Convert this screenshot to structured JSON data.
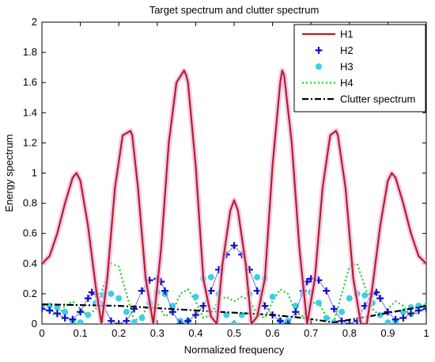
{
  "chart_data": {
    "type": "line",
    "title": "Target spectrum and clutter spectrum",
    "xlabel": "Normalized frequency",
    "ylabel": "Energy spectrum",
    "xlim": [
      0,
      1
    ],
    "ylim": [
      0,
      2
    ],
    "grid": false,
    "legend_position": "top-right",
    "x_ticks": [
      "0",
      "0.1",
      "0.2",
      "0.3",
      "0.4",
      "0.5",
      "0.6",
      "0.7",
      "0.8",
      "0.9",
      "1"
    ],
    "y_ticks": [
      "0",
      "0.2",
      "0.4",
      "0.6",
      "0.8",
      "1",
      "1.2",
      "1.4",
      "1.6",
      "1.8",
      "2"
    ],
    "series": [
      {
        "name": "H1",
        "color": "#b22222",
        "style": "solid",
        "x": [
          0,
          0.02,
          0.04,
          0.06,
          0.08,
          0.09,
          0.1,
          0.12,
          0.14,
          0.155,
          0.17,
          0.19,
          0.21,
          0.23,
          0.235,
          0.25,
          0.27,
          0.29,
          0.31,
          0.33,
          0.35,
          0.37,
          0.375,
          0.38,
          0.4,
          0.42,
          0.44,
          0.455,
          0.47,
          0.49,
          0.5,
          0.51,
          0.53,
          0.545,
          0.56,
          0.58,
          0.6,
          0.62,
          0.625,
          0.63,
          0.65,
          0.67,
          0.69,
          0.71,
          0.73,
          0.75,
          0.765,
          0.77,
          0.79,
          0.81,
          0.83,
          0.845,
          0.86,
          0.88,
          0.9,
          0.91,
          0.92,
          0.94,
          0.96,
          0.98,
          1.0
        ],
        "y": [
          0.4,
          0.45,
          0.6,
          0.8,
          0.97,
          1.0,
          0.95,
          0.65,
          0.25,
          0.0,
          0.3,
          0.9,
          1.25,
          1.28,
          1.25,
          0.9,
          0.3,
          0.0,
          0.5,
          1.2,
          1.6,
          1.68,
          1.65,
          1.6,
          1.05,
          0.3,
          0.05,
          0.0,
          0.4,
          0.75,
          0.82,
          0.75,
          0.4,
          0.0,
          0.05,
          0.3,
          1.05,
          1.6,
          1.68,
          1.65,
          1.2,
          0.5,
          0.0,
          0.3,
          0.9,
          1.25,
          1.28,
          1.25,
          0.9,
          0.3,
          0.0,
          0.0,
          0.25,
          0.65,
          0.95,
          1.0,
          0.97,
          0.8,
          0.6,
          0.45,
          0.4
        ]
      },
      {
        "name": "H2",
        "color": "#1010c0",
        "style": "plus",
        "x": [
          0,
          0.02,
          0.04,
          0.06,
          0.08,
          0.1,
          0.12,
          0.13,
          0.14,
          0.16,
          0.18,
          0.2,
          0.22,
          0.24,
          0.26,
          0.28,
          0.3,
          0.31,
          0.32,
          0.34,
          0.36,
          0.38,
          0.4,
          0.42,
          0.44,
          0.46,
          0.48,
          0.5,
          0.52,
          0.54,
          0.56,
          0.58,
          0.6,
          0.62,
          0.64,
          0.66,
          0.68,
          0.69,
          0.7,
          0.72,
          0.74,
          0.76,
          0.78,
          0.8,
          0.82,
          0.84,
          0.86,
          0.87,
          0.88,
          0.9,
          0.92,
          0.94,
          0.96,
          0.98,
          1.0
        ],
        "y": [
          0.1,
          0.09,
          0.07,
          0.04,
          0.03,
          0.08,
          0.17,
          0.21,
          0.2,
          0.12,
          0.02,
          0.0,
          0.02,
          0.1,
          0.22,
          0.29,
          0.3,
          0.28,
          0.22,
          0.08,
          0.0,
          0.02,
          0.06,
          0.12,
          0.22,
          0.36,
          0.46,
          0.52,
          0.46,
          0.36,
          0.22,
          0.12,
          0.06,
          0.02,
          0.0,
          0.08,
          0.22,
          0.28,
          0.3,
          0.29,
          0.22,
          0.1,
          0.02,
          0.0,
          0.02,
          0.12,
          0.2,
          0.21,
          0.17,
          0.08,
          0.03,
          0.04,
          0.07,
          0.09,
          0.1
        ]
      },
      {
        "name": "H3",
        "color": "#3ccfe6",
        "style": "dots",
        "x": [
          0,
          0.02,
          0.04,
          0.06,
          0.08,
          0.1,
          0.12,
          0.14,
          0.16,
          0.18,
          0.2,
          0.22,
          0.24,
          0.26,
          0.28,
          0.3,
          0.32,
          0.34,
          0.36,
          0.38,
          0.4,
          0.42,
          0.44,
          0.46,
          0.48,
          0.5,
          0.52,
          0.54,
          0.56,
          0.58,
          0.6,
          0.62,
          0.64,
          0.66,
          0.68,
          0.7,
          0.72,
          0.74,
          0.76,
          0.78,
          0.8,
          0.82,
          0.84,
          0.86,
          0.88,
          0.9,
          0.92,
          0.94,
          0.96,
          0.98,
          1.0
        ],
        "y": [
          0.12,
          0.12,
          0.11,
          0.08,
          0.02,
          0.01,
          0.06,
          0.14,
          0.19,
          0.2,
          0.17,
          0.08,
          0.01,
          0.04,
          0.14,
          0.21,
          0.2,
          0.12,
          0.02,
          0.02,
          0.18,
          0.3,
          0.31,
          0.2,
          0.06,
          0.0,
          0.06,
          0.2,
          0.31,
          0.3,
          0.18,
          0.02,
          0.02,
          0.12,
          0.2,
          0.21,
          0.14,
          0.04,
          0.01,
          0.08,
          0.17,
          0.2,
          0.19,
          0.14,
          0.06,
          0.01,
          0.02,
          0.08,
          0.11,
          0.12,
          0.12
        ]
      },
      {
        "name": "H4",
        "color": "#22cc22",
        "style": "dotted",
        "x": [
          0,
          0.02,
          0.04,
          0.06,
          0.08,
          0.1,
          0.12,
          0.14,
          0.16,
          0.18,
          0.2,
          0.22,
          0.24,
          0.26,
          0.28,
          0.3,
          0.32,
          0.34,
          0.36,
          0.38,
          0.4,
          0.42,
          0.44,
          0.46,
          0.48,
          0.5,
          0.52,
          0.54,
          0.56,
          0.58,
          0.6,
          0.62,
          0.64,
          0.66,
          0.68,
          0.7,
          0.72,
          0.74,
          0.76,
          0.78,
          0.8,
          0.82,
          0.84,
          0.86,
          0.88,
          0.9,
          0.92,
          0.94,
          0.96,
          0.98,
          1.0
        ],
        "y": [
          0.1,
          0.08,
          0.05,
          0.12,
          0.15,
          0.1,
          0.05,
          0.1,
          0.25,
          0.4,
          0.38,
          0.2,
          0.02,
          0.05,
          0.14,
          0.14,
          0.05,
          0.08,
          0.2,
          0.23,
          0.15,
          0.04,
          0.06,
          0.16,
          0.18,
          0.15,
          0.18,
          0.16,
          0.06,
          0.04,
          0.15,
          0.23,
          0.2,
          0.08,
          0.05,
          0.14,
          0.14,
          0.05,
          0.02,
          0.2,
          0.38,
          0.4,
          0.25,
          0.1,
          0.05,
          0.1,
          0.15,
          0.12,
          0.05,
          0.08,
          0.1
        ]
      },
      {
        "name": "Clutter spectrum",
        "color": "#000000",
        "style": "dashdot",
        "x": [
          0,
          0.2,
          0.4,
          0.6,
          0.68,
          0.76,
          0.85,
          1.0
        ],
        "y": [
          0.13,
          0.12,
          0.09,
          0.06,
          0.04,
          0.01,
          0.05,
          0.12
        ]
      }
    ]
  }
}
